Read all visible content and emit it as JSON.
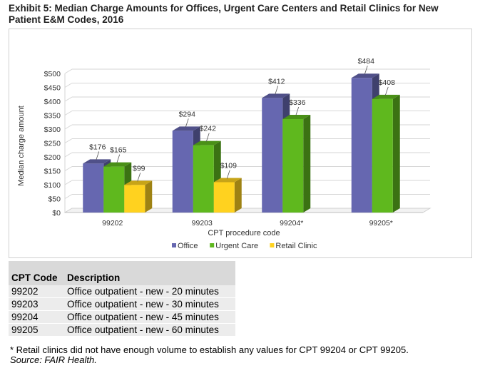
{
  "title": "Exhibit 5: Median Charge Amounts for Offices, Urgent Care Centers and Retail Clinics for New Patient E&M Codes, 2016",
  "chart_data": {
    "type": "bar",
    "categories": [
      "99202",
      "99203",
      "99204*",
      "99205*"
    ],
    "series": [
      {
        "name": "Office",
        "values": [
          176,
          294,
          412,
          484
        ],
        "labels": [
          "$176",
          "$294",
          "$412",
          "$484"
        ],
        "color": "#6667b0"
      },
      {
        "name": "Urgent Care",
        "values": [
          165,
          242,
          336,
          408
        ],
        "labels": [
          "$165",
          "$242",
          "$336",
          "$408"
        ],
        "color": "#5fb81e"
      },
      {
        "name": "Retail Clinic",
        "values": [
          99,
          109,
          null,
          null
        ],
        "labels": [
          "$99",
          "$109",
          "",
          ""
        ],
        "color": "#ffd21f"
      }
    ],
    "xlabel": "CPT procedure code",
    "ylabel": "Median charge amount",
    "ylim": [
      0,
      500
    ],
    "yticks": [
      "$0",
      "$50",
      "$100",
      "$150",
      "$200",
      "$250",
      "$300",
      "$350",
      "$400",
      "$450",
      "$500"
    ],
    "grid": true,
    "legend_position": "bottom"
  },
  "table": {
    "headers": [
      "CPT Code",
      "Description"
    ],
    "rows": [
      [
        "99202",
        "Office outpatient - new - 20 minutes"
      ],
      [
        "99203",
        "Office outpatient - new - 30 minutes"
      ],
      [
        "99204",
        "Office outpatient - new - 45 minutes"
      ],
      [
        "99205",
        "Office outpatient - new - 60 minutes"
      ]
    ]
  },
  "note": "* Retail clinics did not have enough volume to establish any values for CPT 99204 or CPT 99205.",
  "source": "Source: FAIR Health."
}
